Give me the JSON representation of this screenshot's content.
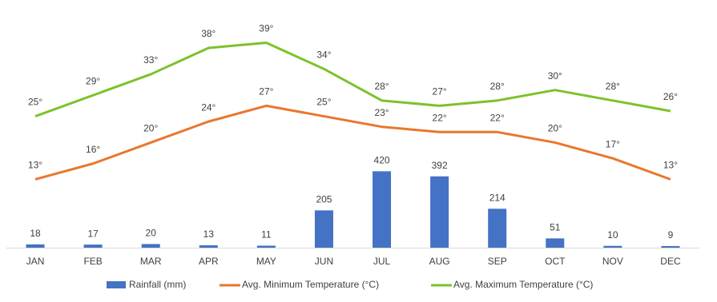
{
  "chart_data": {
    "type": "bar-line",
    "categories": [
      "JAN",
      "FEB",
      "MAR",
      "APR",
      "MAY",
      "JUN",
      "JUL",
      "AUG",
      "SEP",
      "OCT",
      "NOV",
      "DEC"
    ],
    "series": [
      {
        "name": "Rainfall (mm)",
        "type": "bar",
        "color": "#4472c4",
        "values": [
          18,
          17,
          20,
          13,
          11,
          205,
          420,
          392,
          214,
          51,
          10,
          9
        ]
      },
      {
        "name": "Avg. Minimum Temperature (°C)",
        "type": "line",
        "axis": "y2",
        "color": "#e8772e",
        "values": [
          13,
          16,
          20,
          24,
          27,
          25,
          23,
          22,
          22,
          20,
          17,
          13
        ],
        "value_labels": [
          "13°",
          "16°",
          "20°",
          "24°",
          "27°",
          "25°",
          "23°",
          "22°",
          "22°",
          "20°",
          "17°",
          "13°"
        ]
      },
      {
        "name": "Avg. Maximum Temperature (°C)",
        "type": "line",
        "axis": "y2",
        "color": "#7dc22a",
        "values": [
          25,
          29,
          33,
          38,
          39,
          34,
          28,
          27,
          28,
          30,
          28,
          26
        ],
        "value_labels": [
          "25°",
          "29°",
          "33°",
          "38°",
          "39°",
          "34°",
          "28°",
          "27°",
          "28°",
          "30°",
          "28°",
          "26°"
        ]
      }
    ],
    "ylim": [
      0,
      1300
    ],
    "y2lim": [
      0,
      45
    ],
    "legend": "bottom"
  }
}
